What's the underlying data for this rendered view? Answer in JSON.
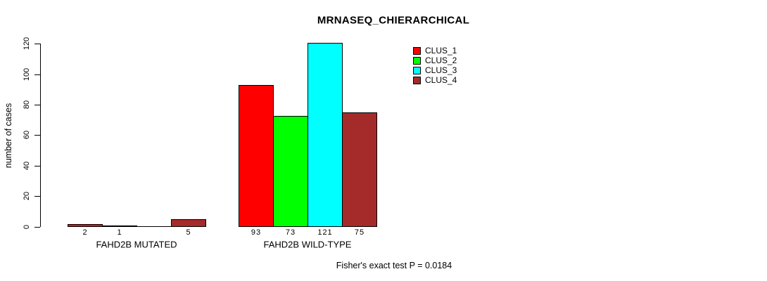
{
  "chart_data": {
    "type": "bar",
    "title": "MRNASEQ_CHIERARCHICAL",
    "ylabel": "number of cases",
    "ylim": [
      0,
      120
    ],
    "yticks": [
      0,
      20,
      40,
      60,
      80,
      100,
      120
    ],
    "grid": false,
    "legend_position": "top-right",
    "legend": [
      "CLUS_1",
      "CLUS_2",
      "CLUS_3",
      "CLUS_4"
    ],
    "colors": [
      "#FF0000",
      "#00FF00",
      "#00FFFF",
      "#A52A2A"
    ],
    "categories": [
      "FAHD2B MUTATED",
      "FAHD2B WILD-TYPE"
    ],
    "series": [
      {
        "name": "CLUS_1",
        "values": [
          2,
          93
        ]
      },
      {
        "name": "CLUS_2",
        "values": [
          1,
          73
        ]
      },
      {
        "name": "CLUS_3",
        "values": [
          0,
          121
        ]
      },
      {
        "name": "CLUS_4",
        "values": [
          5,
          75
        ]
      }
    ],
    "bar_value_labels": [
      [
        "2",
        "1",
        "",
        "5"
      ],
      [
        "93",
        "73",
        "121",
        "75"
      ]
    ],
    "annotation": "Fisher's exact test P = 0.0184"
  }
}
